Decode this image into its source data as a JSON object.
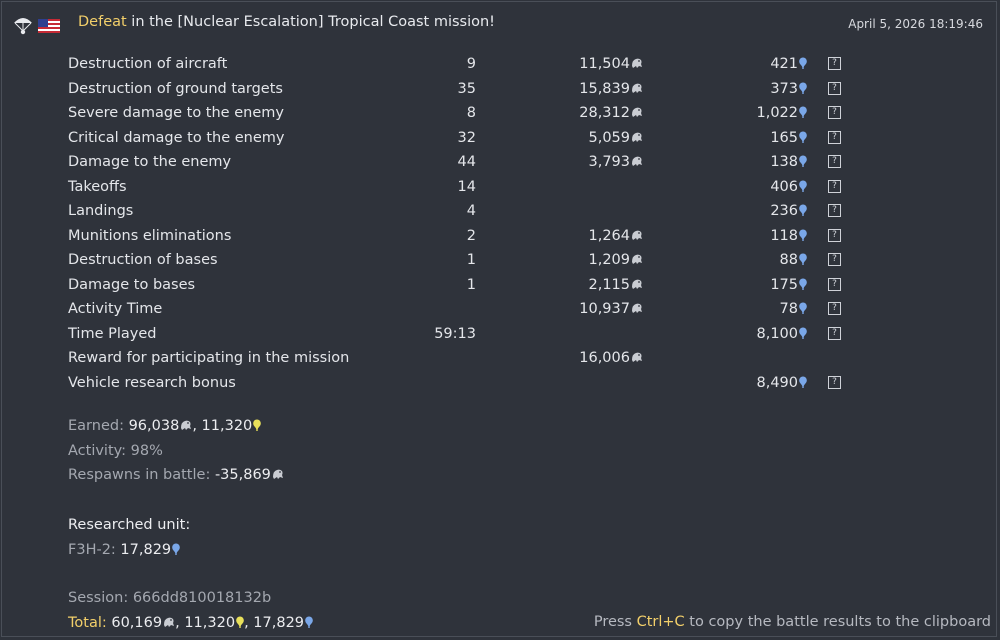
{
  "header": {
    "outcome": "Defeat",
    "title_rest": " in the [Nuclear Escalation] Tropical Coast mission!",
    "timestamp": "April 5, 2026 18:19:46",
    "icons": [
      "parachute-icon",
      "us-flag-icon"
    ]
  },
  "rows": [
    {
      "label": "Destruction of aircraft",
      "count": "9",
      "silver": "11,504",
      "rp": "421",
      "help": "?"
    },
    {
      "label": "Destruction of ground targets",
      "count": "35",
      "silver": "15,839",
      "rp": "373",
      "help": "?"
    },
    {
      "label": "Severe damage to the enemy",
      "count": "8",
      "silver": "28,312",
      "rp": "1,022",
      "help": "?"
    },
    {
      "label": "Critical damage to the enemy",
      "count": "32",
      "silver": "5,059",
      "rp": "165",
      "help": "?"
    },
    {
      "label": "Damage to the enemy",
      "count": "44",
      "silver": "3,793",
      "rp": "138",
      "help": "?"
    },
    {
      "label": "Takeoffs",
      "count": "14",
      "silver": "",
      "rp": "406",
      "help": "?"
    },
    {
      "label": "Landings",
      "count": "4",
      "silver": "",
      "rp": "236",
      "help": "?"
    },
    {
      "label": "Munitions eliminations",
      "count": "2",
      "silver": "1,264",
      "rp": "118",
      "help": "?"
    },
    {
      "label": "Destruction of bases",
      "count": "1",
      "silver": "1,209",
      "rp": "88",
      "help": "?"
    },
    {
      "label": "Damage to bases",
      "count": "1",
      "silver": "2,115",
      "rp": "175",
      "help": "?"
    },
    {
      "label": "Activity Time",
      "count": "",
      "silver": "10,937",
      "rp": "78",
      "help": "?"
    },
    {
      "label": "Time Played",
      "count": "59:13",
      "silver": "",
      "rp": "8,100",
      "help": "?"
    },
    {
      "label": "Reward for participating in the mission",
      "count": "",
      "silver": "16,006",
      "rp": "",
      "help": ""
    },
    {
      "label": "Vehicle research bonus",
      "count": "",
      "silver": "",
      "rp": "8,490",
      "help": "?"
    }
  ],
  "summary": {
    "earned_label": "Earned: ",
    "earned_silver": "96,038",
    "earned_sep": ", ",
    "earned_rp": "11,320",
    "activity_label": "Activity: ",
    "activity_value": "98%",
    "respawns_label": "Respawns in battle: ",
    "respawns_value": "-35,869"
  },
  "researched": {
    "label": "Researched unit:",
    "unit": "F3H-2: ",
    "rp": "17,829"
  },
  "session": {
    "label": "Session: ",
    "id": "666dd810018132b",
    "total_label": "Total: ",
    "total_silver": "60,169",
    "sep1": ", ",
    "total_rp_general": "11,320",
    "sep2": ", ",
    "total_rp_unit": "17,829"
  },
  "hint": {
    "prefix": "Press ",
    "keys": "Ctrl+C",
    "suffix": " to copy the battle results to the clipboard"
  },
  "colors": {
    "background": "#2f333b",
    "accent_yellow": "#f2cf6a",
    "rp_blue": "#7aa7e8",
    "rp_yellow": "#e8e05a",
    "grey_text": "#a4a8b0"
  }
}
